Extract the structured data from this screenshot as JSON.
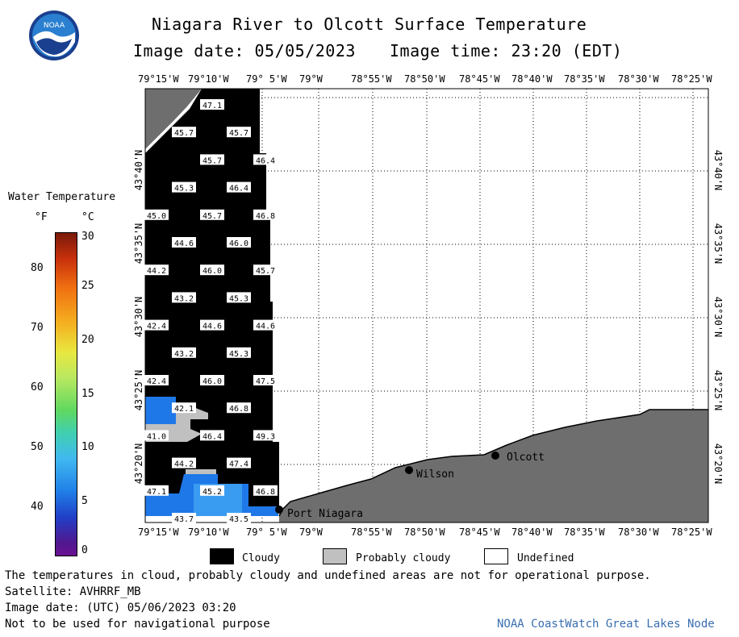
{
  "title": "Niagara River to Olcott Surface Temperature",
  "image_date_line": "Image date: 05/05/2023",
  "image_time_line": "Image time: 23:20 (EDT)",
  "logo_text": "NOAA",
  "top_lon_ticks": [
    "79°15'W",
    "79°10'W",
    "79° 5'W",
    "79°W",
    "78°55'W",
    "78°50'W",
    "78°45'W",
    "78°40'W",
    "78°35'W",
    "78°30'W",
    "78°25'W"
  ],
  "bottom_lon_ticks": [
    "79°15'W",
    "79°10'W",
    "79° 5'W",
    "79°W",
    "78°55'W",
    "78°50'W",
    "78°45'W",
    "78°40'W",
    "78°35'W",
    "78°30'W",
    "78°25'W"
  ],
  "lat_ticks": [
    "43°40'N",
    "43°35'N",
    "43°30'N",
    "43°25'N",
    "43°20'N"
  ],
  "colorbar": {
    "title": "Water Temperature",
    "unit_f": "°F",
    "unit_c": "°C",
    "f_ticks": [
      "80",
      "70",
      "60",
      "50",
      "40"
    ],
    "c_ticks": [
      "30",
      "25",
      "20",
      "15",
      "10",
      "5",
      "0"
    ]
  },
  "places": {
    "wilson": "Wilson",
    "olcott": "Olcott",
    "port_niagara": "Port Niagara"
  },
  "temperature_labels": [
    {
      "text": "47.1",
      "col": 1,
      "row": 0
    },
    {
      "text": "45.7",
      "col": 0,
      "row": 1
    },
    {
      "text": "45.7",
      "col": 2,
      "row": 1
    },
    {
      "text": "45.7",
      "col": 1,
      "row": 2
    },
    {
      "text": "46.4",
      "col": 3,
      "row": 2
    },
    {
      "text": "45.3",
      "col": 0,
      "row": 3
    },
    {
      "text": "46.4",
      "col": 2,
      "row": 3
    },
    {
      "text": "45.0",
      "col": -1,
      "row": 4
    },
    {
      "text": "45.7",
      "col": 1,
      "row": 4
    },
    {
      "text": "46.8",
      "col": 3,
      "row": 4
    },
    {
      "text": "44.6",
      "col": 0,
      "row": 5
    },
    {
      "text": "46.0",
      "col": 2,
      "row": 5
    },
    {
      "text": "44.2",
      "col": -1,
      "row": 6
    },
    {
      "text": "46.0",
      "col": 1,
      "row": 6
    },
    {
      "text": "45.7",
      "col": 3,
      "row": 6
    },
    {
      "text": "43.2",
      "col": 0,
      "row": 7
    },
    {
      "text": "45.3",
      "col": 2,
      "row": 7
    },
    {
      "text": "42.4",
      "col": -1,
      "row": 8
    },
    {
      "text": "44.6",
      "col": 1,
      "row": 8
    },
    {
      "text": "44.6",
      "col": 3,
      "row": 8
    },
    {
      "text": "43.2",
      "col": 0,
      "row": 9
    },
    {
      "text": "45.3",
      "col": 2,
      "row": 9
    },
    {
      "text": "42.4",
      "col": -1,
      "row": 10
    },
    {
      "text": "46.0",
      "col": 1,
      "row": 10
    },
    {
      "text": "47.5",
      "col": 3,
      "row": 10
    },
    {
      "text": "42.1",
      "col": 0,
      "row": 11
    },
    {
      "text": "46.8",
      "col": 2,
      "row": 11
    },
    {
      "text": "41.0",
      "col": -1,
      "row": 12
    },
    {
      "text": "46.4",
      "col": 1,
      "row": 12
    },
    {
      "text": "49.3",
      "col": 3,
      "row": 12
    },
    {
      "text": "44.2",
      "col": 0,
      "row": 13
    },
    {
      "text": "47.4",
      "col": 2,
      "row": 13
    },
    {
      "text": "47.1",
      "col": -1,
      "row": 14
    },
    {
      "text": "45.2",
      "col": 1,
      "row": 14
    },
    {
      "text": "46.8",
      "col": 3,
      "row": 14
    },
    {
      "text": "43.7",
      "col": 0,
      "row": 15
    },
    {
      "text": "43.5",
      "col": 2,
      "row": 15
    }
  ],
  "legend": {
    "cloudy": "Cloudy",
    "probably_cloudy": "Probably cloudy",
    "undefined": "Undefined",
    "colors": {
      "cloudy": "#000000",
      "probably_cloudy": "#c0c0c0",
      "undefined": "#ffffff",
      "land": "#6e6e6e"
    }
  },
  "footer": {
    "disclaimer": "The temperatures in cloud, probably cloudy and undefined areas are not for operational purpose.",
    "satellite": "Satellite: AVHRRF_MB",
    "utc_date": "Image date: (UTC) 05/06/2023  03:20",
    "nav": "Not to be used for navigational purpose",
    "credit": "NOAA CoastWatch Great Lakes Node"
  }
}
